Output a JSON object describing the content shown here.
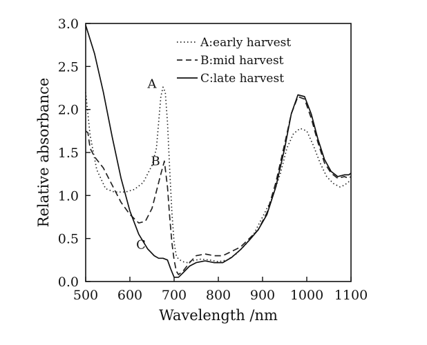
{
  "chart_data": {
    "type": "line",
    "xlabel": "Wavelength /nm",
    "ylabel": "Relative absorbance",
    "xlim": [
      500,
      1100
    ],
    "ylim": [
      0.0,
      3.0
    ],
    "x_ticks": [
      500,
      600,
      700,
      800,
      900,
      1000,
      1100
    ],
    "y_ticks": [
      0.0,
      0.5,
      1.0,
      1.5,
      2.0,
      2.5,
      3.0
    ],
    "x_tick_labels": [
      "500",
      "600",
      "700",
      "800",
      "900",
      "1000",
      "1100"
    ],
    "y_tick_labels": [
      "0.0",
      "0.5",
      "1.0",
      "1.5",
      "2.0",
      "2.5",
      "3.0"
    ],
    "grid": false,
    "legend_position": "top-right",
    "series": [
      {
        "name": "A:early harvest",
        "tag": "A",
        "style": "dotted",
        "color": "#222222",
        "points": [
          [
            500,
            2.2
          ],
          [
            510,
            1.7
          ],
          [
            525,
            1.3
          ],
          [
            545,
            1.08
          ],
          [
            565,
            1.04
          ],
          [
            590,
            1.04
          ],
          [
            610,
            1.07
          ],
          [
            630,
            1.15
          ],
          [
            650,
            1.35
          ],
          [
            660,
            1.55
          ],
          [
            665,
            1.85
          ],
          [
            670,
            2.15
          ],
          [
            675,
            2.26
          ],
          [
            680,
            2.2
          ],
          [
            685,
            1.85
          ],
          [
            690,
            1.3
          ],
          [
            695,
            0.8
          ],
          [
            700,
            0.45
          ],
          [
            705,
            0.3
          ],
          [
            710,
            0.26
          ],
          [
            720,
            0.23
          ],
          [
            730,
            0.22
          ],
          [
            740,
            0.24
          ],
          [
            760,
            0.26
          ],
          [
            780,
            0.25
          ],
          [
            800,
            0.23
          ],
          [
            820,
            0.25
          ],
          [
            840,
            0.32
          ],
          [
            860,
            0.42
          ],
          [
            880,
            0.55
          ],
          [
            900,
            0.75
          ],
          [
            920,
            0.95
          ],
          [
            940,
            1.25
          ],
          [
            955,
            1.55
          ],
          [
            970,
            1.72
          ],
          [
            985,
            1.78
          ],
          [
            1000,
            1.75
          ],
          [
            1015,
            1.58
          ],
          [
            1030,
            1.38
          ],
          [
            1045,
            1.22
          ],
          [
            1060,
            1.14
          ],
          [
            1075,
            1.1
          ],
          [
            1085,
            1.12
          ],
          [
            1095,
            1.16
          ],
          [
            1100,
            1.18
          ]
        ]
      },
      {
        "name": "B:mid harvest",
        "tag": "B",
        "style": "dashed",
        "color": "#222222",
        "points": [
          [
            500,
            1.75
          ],
          [
            505,
            1.73
          ],
          [
            510,
            1.55
          ],
          [
            520,
            1.45
          ],
          [
            540,
            1.32
          ],
          [
            560,
            1.12
          ],
          [
            580,
            0.92
          ],
          [
            600,
            0.78
          ],
          [
            620,
            0.68
          ],
          [
            635,
            0.7
          ],
          [
            650,
            0.85
          ],
          [
            660,
            1.05
          ],
          [
            670,
            1.25
          ],
          [
            678,
            1.4
          ],
          [
            685,
            1.1
          ],
          [
            690,
            0.75
          ],
          [
            695,
            0.45
          ],
          [
            700,
            0.25
          ],
          [
            705,
            0.12
          ],
          [
            710,
            0.08
          ],
          [
            720,
            0.12
          ],
          [
            735,
            0.22
          ],
          [
            750,
            0.3
          ],
          [
            770,
            0.32
          ],
          [
            790,
            0.3
          ],
          [
            810,
            0.3
          ],
          [
            830,
            0.35
          ],
          [
            850,
            0.4
          ],
          [
            870,
            0.5
          ],
          [
            890,
            0.6
          ],
          [
            910,
            0.8
          ],
          [
            930,
            1.15
          ],
          [
            950,
            1.6
          ],
          [
            965,
            1.95
          ],
          [
            980,
            2.15
          ],
          [
            995,
            2.12
          ],
          [
            1010,
            1.9
          ],
          [
            1025,
            1.62
          ],
          [
            1040,
            1.38
          ],
          [
            1055,
            1.26
          ],
          [
            1070,
            1.2
          ],
          [
            1085,
            1.22
          ],
          [
            1095,
            1.2
          ],
          [
            1100,
            1.22
          ]
        ]
      },
      {
        "name": "C:late harvest",
        "tag": "C",
        "style": "solid",
        "color": "#111111",
        "points": [
          [
            500,
            2.98
          ],
          [
            520,
            2.65
          ],
          [
            540,
            2.2
          ],
          [
            560,
            1.68
          ],
          [
            580,
            1.2
          ],
          [
            600,
            0.82
          ],
          [
            620,
            0.55
          ],
          [
            640,
            0.38
          ],
          [
            655,
            0.3
          ],
          [
            665,
            0.27
          ],
          [
            675,
            0.27
          ],
          [
            685,
            0.25
          ],
          [
            692,
            0.15
          ],
          [
            700,
            0.05
          ],
          [
            710,
            0.05
          ],
          [
            720,
            0.1
          ],
          [
            735,
            0.18
          ],
          [
            750,
            0.22
          ],
          [
            770,
            0.24
          ],
          [
            790,
            0.22
          ],
          [
            810,
            0.22
          ],
          [
            830,
            0.28
          ],
          [
            850,
            0.37
          ],
          [
            870,
            0.48
          ],
          [
            890,
            0.6
          ],
          [
            910,
            0.78
          ],
          [
            930,
            1.1
          ],
          [
            950,
            1.55
          ],
          [
            965,
            1.95
          ],
          [
            980,
            2.17
          ],
          [
            995,
            2.15
          ],
          [
            1010,
            1.95
          ],
          [
            1025,
            1.66
          ],
          [
            1040,
            1.42
          ],
          [
            1055,
            1.28
          ],
          [
            1070,
            1.22
          ],
          [
            1085,
            1.24
          ],
          [
            1095,
            1.24
          ],
          [
            1100,
            1.26
          ]
        ]
      }
    ]
  }
}
